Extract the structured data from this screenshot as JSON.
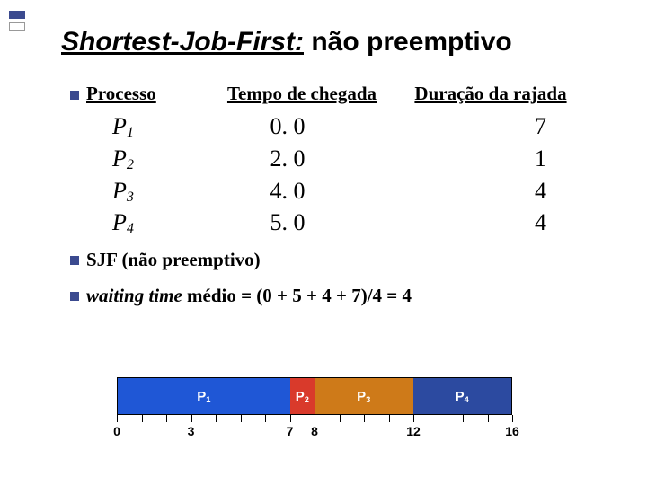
{
  "title_italic": "Shortest-Job-First:",
  "title_rest": " não preemptivo",
  "headers": {
    "processo": "Processo",
    "tempo": "Tempo de chegada",
    "duracao": "Duração da rajada"
  },
  "rows": [
    {
      "name": "P",
      "idx": "1",
      "arrival": "0. 0",
      "burst": "7"
    },
    {
      "name": "P",
      "idx": "2",
      "arrival": "2. 0",
      "burst": "1"
    },
    {
      "name": "P",
      "idx": "3",
      "arrival": "4. 0",
      "burst": "4"
    },
    {
      "name": "P",
      "idx": "4",
      "arrival": "5. 0",
      "burst": "4"
    }
  ],
  "bullets": {
    "sjf_prefix": "SJF ",
    "sjf_rest": "(não preemptivo)",
    "wait_italic": "waiting time",
    "wait_rest": " médio = (0 + 5 + 4 + 7)/4 = 4"
  },
  "gantt": {
    "total": 16,
    "segments": [
      {
        "label": "P",
        "idx": "1",
        "start": 0,
        "end": 7,
        "color": "#1f57d6"
      },
      {
        "label": "P",
        "idx": "2",
        "start": 7,
        "end": 8,
        "color": "#d93a2b"
      },
      {
        "label": "P",
        "idx": "3",
        "start": 8,
        "end": 12,
        "color": "#ce7a19"
      },
      {
        "label": "P",
        "idx": "4",
        "start": 12,
        "end": 16,
        "color": "#2c4aa0"
      }
    ],
    "tick_step": 1,
    "labels": [
      0,
      3,
      7,
      8,
      12,
      16
    ]
  },
  "colors": {
    "accent": "#3b4a8f",
    "text": "#000000",
    "bg": "#ffffff"
  }
}
